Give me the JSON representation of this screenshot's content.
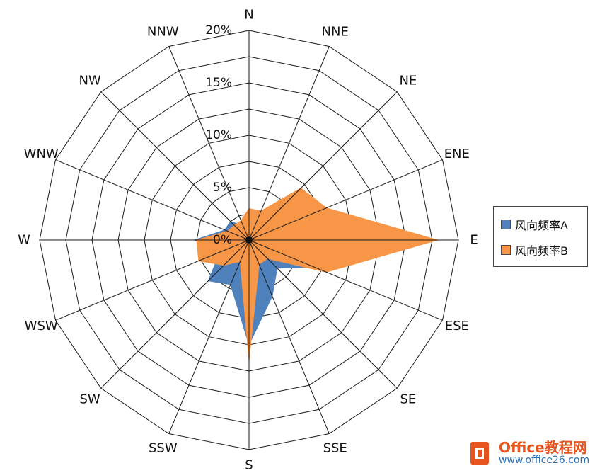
{
  "chart_data": {
    "type": "radar",
    "directions": [
      "N",
      "NNE",
      "NE",
      "ENE",
      "E",
      "ESE",
      "SE",
      "SSE",
      "S",
      "SSW",
      "SW",
      "WSW",
      "W",
      "WNW",
      "NW",
      "NNW"
    ],
    "tick_labels": [
      "0%",
      "5%",
      "10%",
      "15%",
      "20%"
    ],
    "rmax": 20,
    "ticks": [
      0,
      5,
      10,
      15,
      20
    ],
    "ring_count": 8,
    "fill": true,
    "legend_position": "right",
    "series": [
      {
        "name": "风向频率A",
        "color": "#4f81bd",
        "values": [
          1.5,
          1.8,
          2.5,
          6.0,
          18.0,
          6.8,
          3.8,
          5.8,
          10.0,
          4.6,
          5.5,
          3.0,
          5.2,
          2.5,
          2.5,
          1.5
        ]
      },
      {
        "name": "风向频率B",
        "color": "#f79646",
        "values": [
          3.0,
          3.0,
          7.0,
          8.0,
          18.0,
          8.0,
          2.5,
          2.5,
          11.5,
          2.2,
          3.4,
          5.2,
          5.0,
          2.2,
          2.0,
          2.0
        ]
      }
    ]
  },
  "watermark": {
    "title_latin": "Office",
    "title_cn": "教程网",
    "url": "www.office26.com"
  }
}
